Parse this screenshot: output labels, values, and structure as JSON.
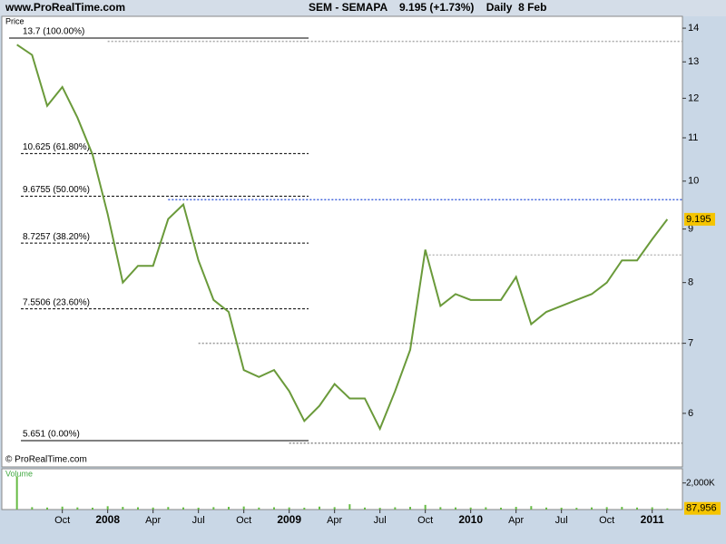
{
  "header": {
    "site": "www.ProRealTime.com",
    "quote": "SEM - SEMAPA    9.195 (+1.73%)    Daily  8 Feb"
  },
  "chart_data": {
    "type": "line",
    "y_label": "Price",
    "credit": "© ProRealTime.com",
    "log_scale": true,
    "x": [
      "2007-07",
      "2007-08",
      "2007-09",
      "2007-10",
      "2007-11",
      "2007-12",
      "2008-01",
      "2008-02",
      "2008-03",
      "2008-04",
      "2008-05",
      "2008-06",
      "2008-07",
      "2008-08",
      "2008-09",
      "2008-10",
      "2008-11",
      "2008-12",
      "2009-01",
      "2009-02",
      "2009-03",
      "2009-04",
      "2009-05",
      "2009-06",
      "2009-07",
      "2009-08",
      "2009-09",
      "2009-10",
      "2009-11",
      "2009-12",
      "2010-01",
      "2010-02",
      "2010-03",
      "2010-04",
      "2010-05",
      "2010-06",
      "2010-07",
      "2010-08",
      "2010-09",
      "2010-10",
      "2010-11",
      "2010-12",
      "2011-01",
      "2011-02"
    ],
    "series": [
      {
        "name": "Price",
        "color": "#6a9a3a",
        "values": [
          13.5,
          13.2,
          11.8,
          12.3,
          11.5,
          10.6,
          9.3,
          8.0,
          8.3,
          8.3,
          9.2,
          9.5,
          8.4,
          7.7,
          7.5,
          6.6,
          6.5,
          6.6,
          6.3,
          5.9,
          6.1,
          6.4,
          6.2,
          6.2,
          5.8,
          6.3,
          6.9,
          8.6,
          7.6,
          7.8,
          7.7,
          7.7,
          7.7,
          8.1,
          7.3,
          7.5,
          7.6,
          7.7,
          7.8,
          8.0,
          8.4,
          8.4,
          8.8,
          9.195
        ]
      }
    ],
    "xlim": [
      "2007-06",
      "2011-03"
    ],
    "xticks": [
      {
        "value": "2007-10",
        "label": "Oct"
      },
      {
        "value": "2008-01",
        "label": "2008"
      },
      {
        "value": "2008-04",
        "label": "Apr"
      },
      {
        "value": "2008-07",
        "label": "Jul"
      },
      {
        "value": "2008-10",
        "label": "Oct"
      },
      {
        "value": "2009-01",
        "label": "2009"
      },
      {
        "value": "2009-04",
        "label": "Apr"
      },
      {
        "value": "2009-07",
        "label": "Jul"
      },
      {
        "value": "2009-10",
        "label": "Oct"
      },
      {
        "value": "2010-01",
        "label": "2010"
      },
      {
        "value": "2010-04",
        "label": "Apr"
      },
      {
        "value": "2010-07",
        "label": "Jul"
      },
      {
        "value": "2010-10",
        "label": "Oct"
      },
      {
        "value": "2011-01",
        "label": "2011"
      }
    ],
    "ylim": [
      5.55,
      14.37
    ],
    "yticks": [
      6,
      7,
      8,
      9,
      10,
      11,
      12,
      13,
      14
    ],
    "fib_levels": [
      {
        "value": 13.7,
        "label": "13.7 (100.00%)"
      },
      {
        "value": 10.625,
        "label": "10.625 (61.80%)"
      },
      {
        "value": 9.6755,
        "label": "9.6755 (50.00%)"
      },
      {
        "value": 8.7257,
        "label": "8.7257 (38.20%)"
      },
      {
        "value": 7.5506,
        "label": "7.5506 (23.60%)"
      },
      {
        "value": 5.651,
        "label": "5.651 (0.00%)"
      }
    ],
    "hlines": [
      {
        "value": 13.6,
        "from": "2008-01",
        "color": "#aaaaaa"
      },
      {
        "value": 9.6,
        "from": "2008-05",
        "color": "#4466dd"
      },
      {
        "value": 8.5,
        "from": "2009-10",
        "color": "#bbbbbb"
      },
      {
        "value": 7.0,
        "from": "2008-07",
        "color": "#999999"
      },
      {
        "value": 5.62,
        "from": "2009-01",
        "color": "#888888"
      }
    ],
    "volume": {
      "name": "Volume",
      "color": "#66bb44",
      "values": [
        2500000,
        180000,
        150000,
        220000,
        160000,
        140000,
        250000,
        200000,
        170000,
        150000,
        190000,
        160000,
        140000,
        180000,
        200000,
        230000,
        150000,
        170000,
        160000,
        140000,
        220000,
        180000,
        400000,
        150000,
        130000,
        170000,
        200000,
        350000,
        180000,
        160000,
        150000,
        170000,
        140000,
        200000,
        260000,
        150000,
        140000,
        130000,
        160000,
        180000,
        200000,
        150000,
        170000,
        87956
      ],
      "ylim": [
        0,
        3070000
      ],
      "yticks": [
        {
          "value": 2000000,
          "label": "2,000K"
        }
      ],
      "last_tag": {
        "value": 87956,
        "label": "87,956"
      }
    }
  }
}
